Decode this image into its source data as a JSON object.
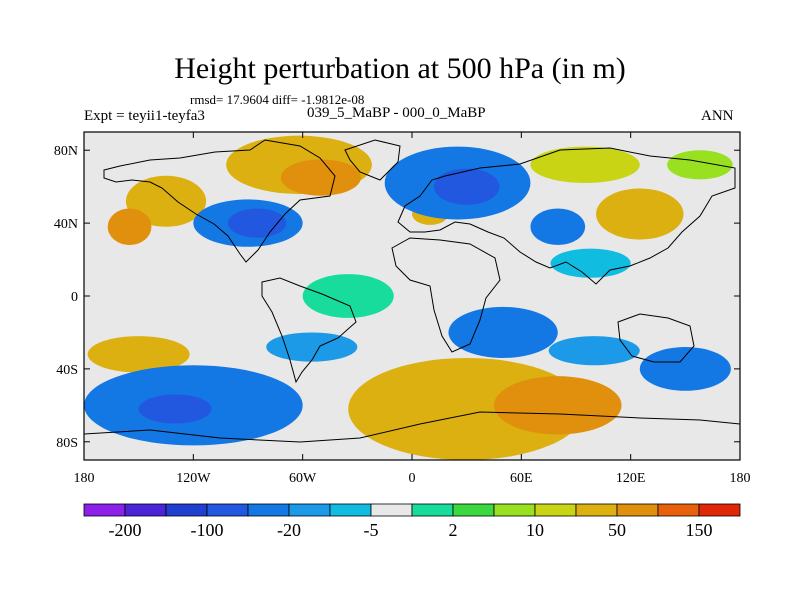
{
  "chart_data": {
    "type": "heatmap",
    "title": "Height perturbation at 500 hPa (in m)",
    "stats_text": "rmsd= 17.9604  diff= -1.9812e-08",
    "left_label": "Expt = teyii1-teyfa3",
    "center_label": "039_5_MaBP - 000_0_MaBP",
    "right_label": "ANN",
    "x_axis": {
      "range": [
        -180,
        180
      ],
      "ticks": [
        {
          "value": -180,
          "label": "180"
        },
        {
          "value": -120,
          "label": "120W"
        },
        {
          "value": -60,
          "label": "60W"
        },
        {
          "value": 0,
          "label": "0"
        },
        {
          "value": 60,
          "label": "60E"
        },
        {
          "value": 120,
          "label": "120E"
        },
        {
          "value": 180,
          "label": "180"
        }
      ]
    },
    "y_axis": {
      "range": [
        -90,
        90
      ],
      "ticks": [
        {
          "value": 80,
          "label": "80N"
        },
        {
          "value": 40,
          "label": "40N"
        },
        {
          "value": 0,
          "label": "0"
        },
        {
          "value": -40,
          "label": "40S"
        },
        {
          "value": -80,
          "label": "80S"
        }
      ]
    },
    "colorbar": {
      "colors": [
        "#8c20e8",
        "#4a24d8",
        "#2040d0",
        "#2258e0",
        "#1478e4",
        "#1c9ae8",
        "#10bce0",
        "#e8e8e8",
        "#18dc9c",
        "#3cd840",
        "#98e020",
        "#c8d414",
        "#dcb010",
        "#e0900c",
        "#e8600c",
        "#e02808"
      ],
      "labels": [
        {
          "boundary": 1,
          "text": "-200"
        },
        {
          "boundary": 3,
          "text": "-100"
        },
        {
          "boundary": 5,
          "text": "-20"
        },
        {
          "boundary": 7,
          "text": "-5"
        },
        {
          "boundary": 9,
          "text": "2"
        },
        {
          "boundary": 11,
          "text": "10"
        },
        {
          "boundary": 13,
          "text": "50"
        },
        {
          "boundary": 15,
          "text": "150"
        }
      ]
    },
    "anomaly_regions": [
      {
        "lon": -135,
        "lat": 52,
        "rlon": 22,
        "rlat": 14,
        "level": 12
      },
      {
        "lon": -155,
        "lat": 38,
        "rlon": 12,
        "rlat": 10,
        "level": 13
      },
      {
        "lon": -62,
        "lat": 72,
        "rlon": 40,
        "rlat": 16,
        "level": 12
      },
      {
        "lon": -50,
        "lat": 65,
        "rlon": 22,
        "rlat": 10,
        "level": 13
      },
      {
        "lon": 10,
        "lat": 45,
        "rlon": 10,
        "rlat": 6,
        "level": 12
      },
      {
        "lon": -90,
        "lat": 40,
        "rlon": 30,
        "rlat": 13,
        "level": 4
      },
      {
        "lon": -85,
        "lat": 40,
        "rlon": 16,
        "rlat": 8,
        "level": 3
      },
      {
        "lon": 25,
        "lat": 62,
        "rlon": 40,
        "rlat": 20,
        "level": 4
      },
      {
        "lon": 30,
        "lat": 60,
        "rlon": 18,
        "rlat": 10,
        "level": 3
      },
      {
        "lon": 95,
        "lat": 72,
        "rlon": 30,
        "rlat": 10,
        "level": 11
      },
      {
        "lon": 125,
        "lat": 45,
        "rlon": 24,
        "rlat": 14,
        "level": 12
      },
      {
        "lon": 158,
        "lat": 72,
        "rlon": 18,
        "rlat": 8,
        "level": 10
      },
      {
        "lon": 80,
        "lat": 38,
        "rlon": 15,
        "rlat": 10,
        "level": 4
      },
      {
        "lon": 98,
        "lat": 18,
        "rlon": 22,
        "rlat": 8,
        "level": 6
      },
      {
        "lon": -150,
        "lat": -32,
        "rlon": 28,
        "rlat": 10,
        "level": 12
      },
      {
        "lon": -120,
        "lat": -60,
        "rlon": 60,
        "rlat": 22,
        "level": 4
      },
      {
        "lon": -130,
        "lat": -62,
        "rlon": 20,
        "rlat": 8,
        "level": 3
      },
      {
        "lon": -55,
        "lat": -28,
        "rlon": 25,
        "rlat": 8,
        "level": 5
      },
      {
        "lon": 30,
        "lat": -62,
        "rlon": 65,
        "rlat": 28,
        "level": 12
      },
      {
        "lon": 80,
        "lat": -60,
        "rlon": 35,
        "rlat": 16,
        "level": 13
      },
      {
        "lon": 50,
        "lat": -20,
        "rlon": 30,
        "rlat": 14,
        "level": 4
      },
      {
        "lon": 150,
        "lat": -40,
        "rlon": 25,
        "rlat": 12,
        "level": 4
      },
      {
        "lon": 100,
        "lat": -30,
        "rlon": 25,
        "rlat": 8,
        "level": 5
      },
      {
        "lon": -35,
        "lat": 0,
        "rlon": 25,
        "rlat": 12,
        "level": 8
      }
    ]
  }
}
